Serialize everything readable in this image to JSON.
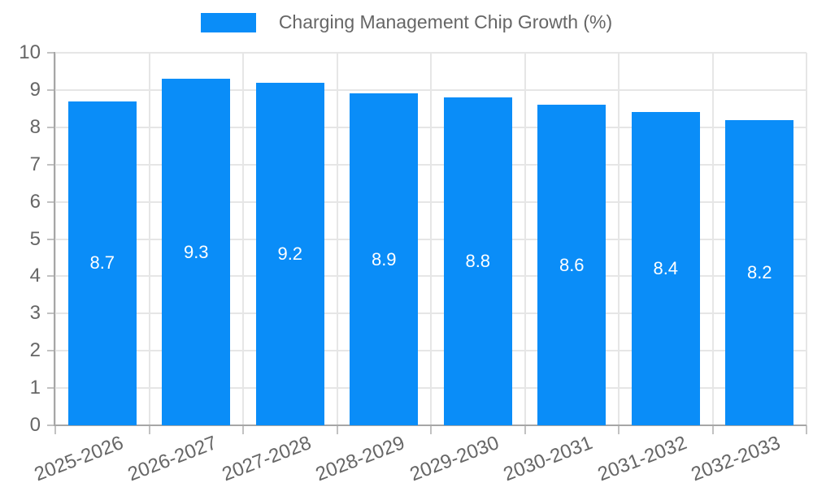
{
  "chart_data": {
    "type": "bar",
    "title": "Charging Management Chip Growth (%)",
    "series_name": "Charging Management Chip Growth (%)",
    "categories": [
      "2025-2026",
      "2026-2027",
      "2027-2028",
      "2028-2029",
      "2029-2030",
      "2030-2031",
      "2031-2032",
      "2032-2033"
    ],
    "values": [
      8.7,
      9.3,
      9.2,
      8.9,
      8.8,
      8.6,
      8.4,
      8.2
    ],
    "xlabel": "",
    "ylabel": "",
    "ylim": [
      0,
      10
    ],
    "yticks": [
      0,
      1,
      2,
      3,
      4,
      5,
      6,
      7,
      8,
      9,
      10
    ],
    "grid": true,
    "legend_position": "top",
    "x_label_rotation_deg": -21,
    "colors": {
      "bar": "#0a8df8",
      "value_label": "#ffffff",
      "grid": "#e6e6e6",
      "axis": "#a6a6a6",
      "tick_mark": "#c2c2c2",
      "tick_label": "#666666",
      "background": "#ffffff"
    }
  }
}
